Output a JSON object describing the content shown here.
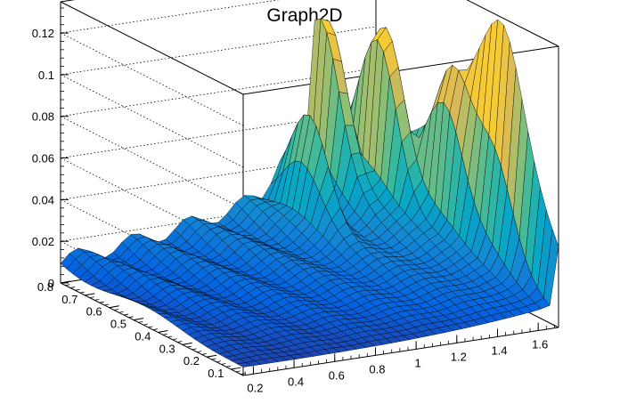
{
  "chart_data": {
    "type": "surface",
    "title": "Graph2D",
    "xlabel": "",
    "ylabel": "",
    "zlabel": "",
    "xlim": [
      0.15,
      1.7
    ],
    "ylim": [
      0.05,
      0.8
    ],
    "zlim": [
      0,
      0.135
    ],
    "x_ticks": [
      "0.2",
      "0.4",
      "0.6",
      "0.8",
      "1",
      "1.2",
      "1.4",
      "1.6"
    ],
    "y_ticks": [
      "0.1",
      "0.2",
      "0.3",
      "0.4",
      "0.5",
      "0.6",
      "0.7",
      "0.8"
    ],
    "z_ticks": [
      "0",
      "0.02",
      "0.04",
      "0.06",
      "0.08",
      "0.1",
      "0.12"
    ],
    "z_grid": "dotted",
    "colormap": [
      "#352a87",
      "#0363e1",
      "#1485d4",
      "#06a7c6",
      "#38b99e",
      "#92bf73",
      "#d9ba56",
      "#fcce2e",
      "#f9fb0e"
    ],
    "peaks": [
      {
        "x": 1.42,
        "y": 0.78,
        "z": 0.128
      },
      {
        "x": 1.55,
        "y": 0.65,
        "z": 0.128
      },
      {
        "x": 1.64,
        "y": 0.45,
        "z": 0.115
      },
      {
        "x": 1.68,
        "y": 0.28,
        "z": 0.095
      },
      {
        "x": 1.22,
        "y": 0.68,
        "z": 0.085
      }
    ],
    "edge_value": {
      "x": 1.7,
      "z": 0.07
    }
  }
}
